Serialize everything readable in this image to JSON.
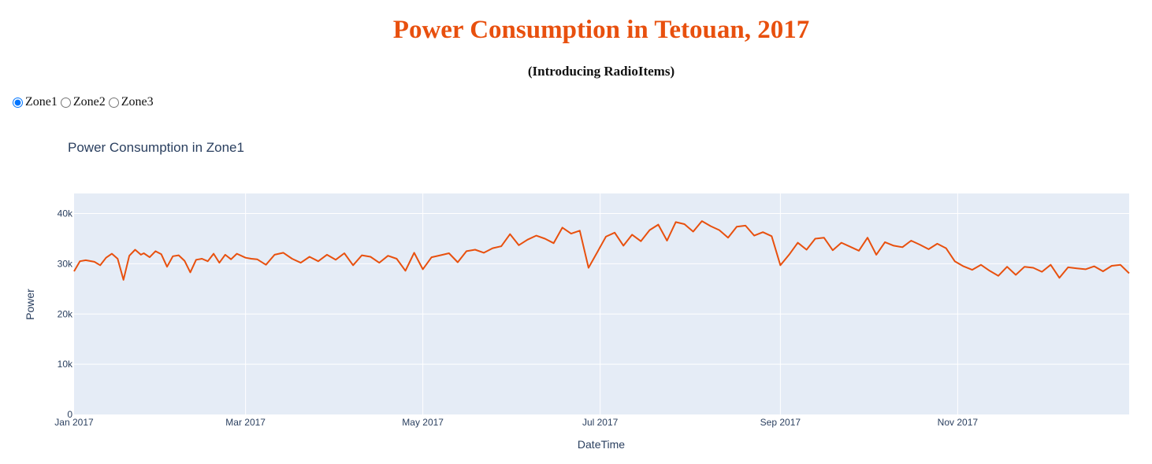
{
  "header": {
    "title": "Power Consumption in Tetouan, 2017",
    "subtitle": "(Introducing RadioItems)"
  },
  "radio": {
    "options": [
      {
        "label": "Zone1",
        "checked": true
      },
      {
        "label": "Zone2",
        "checked": false
      },
      {
        "label": "Zone3",
        "checked": false
      }
    ]
  },
  "colors": {
    "title": "#e8500e",
    "line": "#e8500e",
    "plot_bg": "#e5ecf6",
    "grid": "#ffffff",
    "text": "#2a3f5f"
  },
  "chart_data": {
    "type": "line",
    "title": "Power Consumption in Zone1",
    "xlabel": "DateTime",
    "ylabel": "Power",
    "xrange": [
      "2017-01-01",
      "2017-12-30"
    ],
    "ylim": [
      0,
      44000
    ],
    "grid": true,
    "x_ticks": [
      {
        "date": "2017-01-01",
        "label": "Jan 2017"
      },
      {
        "date": "2017-03-01",
        "label": "Mar 2017"
      },
      {
        "date": "2017-05-01",
        "label": "May 2017"
      },
      {
        "date": "2017-07-01",
        "label": "Jul 2017"
      },
      {
        "date": "2017-09-01",
        "label": "Sep 2017"
      },
      {
        "date": "2017-11-01",
        "label": "Nov 2017"
      }
    ],
    "y_ticks": [
      {
        "value": 0,
        "label": "0"
      },
      {
        "value": 10000,
        "label": "10k"
      },
      {
        "value": 20000,
        "label": "20k"
      },
      {
        "value": 30000,
        "label": "30k"
      },
      {
        "value": 40000,
        "label": "40k"
      }
    ],
    "series": [
      {
        "name": "Zone1",
        "x": [
          "2017-01-01",
          "2017-01-03",
          "2017-01-05",
          "2017-01-08",
          "2017-01-10",
          "2017-01-12",
          "2017-01-14",
          "2017-01-16",
          "2017-01-18",
          "2017-01-20",
          "2017-01-22",
          "2017-01-24",
          "2017-01-25",
          "2017-01-27",
          "2017-01-29",
          "2017-01-31",
          "2017-02-02",
          "2017-02-04",
          "2017-02-06",
          "2017-02-08",
          "2017-02-10",
          "2017-02-12",
          "2017-02-14",
          "2017-02-16",
          "2017-02-18",
          "2017-02-20",
          "2017-02-22",
          "2017-02-24",
          "2017-02-26",
          "2017-03-01",
          "2017-03-03",
          "2017-03-05",
          "2017-03-08",
          "2017-03-11",
          "2017-03-14",
          "2017-03-17",
          "2017-03-20",
          "2017-03-23",
          "2017-03-26",
          "2017-03-29",
          "2017-04-01",
          "2017-04-04",
          "2017-04-07",
          "2017-04-10",
          "2017-04-13",
          "2017-04-16",
          "2017-04-19",
          "2017-04-22",
          "2017-04-25",
          "2017-04-28",
          "2017-05-01",
          "2017-05-04",
          "2017-05-07",
          "2017-05-10",
          "2017-05-13",
          "2017-05-16",
          "2017-05-19",
          "2017-05-22",
          "2017-05-25",
          "2017-05-28",
          "2017-05-31",
          "2017-06-03",
          "2017-06-06",
          "2017-06-09",
          "2017-06-12",
          "2017-06-15",
          "2017-06-18",
          "2017-06-21",
          "2017-06-24",
          "2017-06-27",
          "2017-06-30",
          "2017-07-03",
          "2017-07-06",
          "2017-07-09",
          "2017-07-12",
          "2017-07-15",
          "2017-07-18",
          "2017-07-21",
          "2017-07-24",
          "2017-07-27",
          "2017-07-30",
          "2017-08-02",
          "2017-08-05",
          "2017-08-08",
          "2017-08-11",
          "2017-08-14",
          "2017-08-17",
          "2017-08-20",
          "2017-08-23",
          "2017-08-26",
          "2017-08-29",
          "2017-09-01",
          "2017-09-04",
          "2017-09-07",
          "2017-09-10",
          "2017-09-13",
          "2017-09-16",
          "2017-09-19",
          "2017-09-22",
          "2017-09-25",
          "2017-09-28",
          "2017-10-01",
          "2017-10-04",
          "2017-10-07",
          "2017-10-10",
          "2017-10-13",
          "2017-10-16",
          "2017-10-19",
          "2017-10-22",
          "2017-10-25",
          "2017-10-28",
          "2017-10-31",
          "2017-11-03",
          "2017-11-06",
          "2017-11-09",
          "2017-11-12",
          "2017-11-15",
          "2017-11-18",
          "2017-11-21",
          "2017-11-24",
          "2017-11-27",
          "2017-11-30",
          "2017-12-03",
          "2017-12-06",
          "2017-12-09",
          "2017-12-12",
          "2017-12-15",
          "2017-12-18",
          "2017-12-21",
          "2017-12-24",
          "2017-12-27",
          "2017-12-30"
        ],
        "values": [
          28500,
          30500,
          30700,
          30400,
          29700,
          31200,
          32000,
          31000,
          26800,
          31600,
          32800,
          31800,
          32100,
          31300,
          32500,
          31900,
          29400,
          31500,
          31700,
          30600,
          28300,
          30800,
          31000,
          30500,
          32000,
          30200,
          31800,
          30900,
          32000,
          31200,
          31000,
          30900,
          29800,
          31800,
          32200,
          31000,
          30200,
          31400,
          30500,
          31800,
          30800,
          32100,
          29700,
          31700,
          31400,
          30200,
          31600,
          31000,
          28600,
          32200,
          28900,
          31300,
          31700,
          32100,
          30300,
          32500,
          32800,
          32200,
          33100,
          33500,
          35900,
          33700,
          34800,
          35600,
          35000,
          34100,
          37200,
          36000,
          36600,
          29200,
          32300,
          35400,
          36200,
          33600,
          35800,
          34500,
          36700,
          37800,
          34600,
          38300,
          37900,
          36400,
          38500,
          37500,
          36700,
          35200,
          37400,
          37600,
          35600,
          36300,
          35500,
          29700,
          31800,
          34200,
          32800,
          35000,
          35200,
          32700,
          34200,
          33400,
          32600,
          35200,
          31800,
          34300,
          33600,
          33300,
          34600,
          33800,
          32900,
          34000,
          33100,
          30500,
          29500,
          28800,
          29800,
          28600,
          27600,
          29400,
          27800,
          29400,
          29200,
          28400,
          29800,
          27200,
          29300,
          29100,
          28900,
          29500,
          28500,
          29600,
          29800,
          28100
        ]
      }
    ]
  }
}
